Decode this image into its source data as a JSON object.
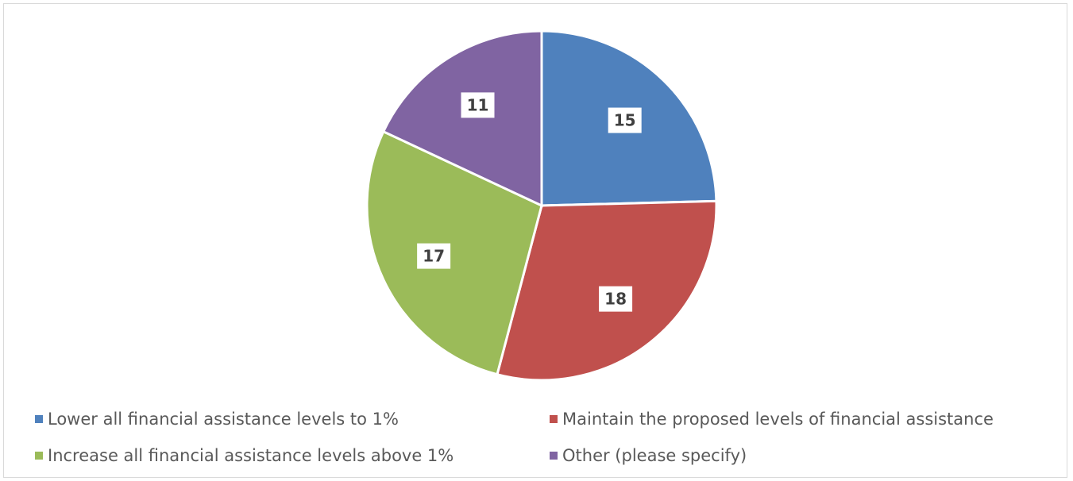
{
  "chart_data": {
    "type": "pie",
    "categories": [
      "Lower all financial assistance levels to 1%",
      "Maintain the proposed levels of financial assistance",
      "Increase all financial assistance levels above 1%",
      "Other (please specify)"
    ],
    "values": [
      15,
      18,
      17,
      11
    ],
    "colors": [
      "#4f81bd",
      "#c0504d",
      "#9bbb59",
      "#8064a2"
    ],
    "data_labels": [
      "15",
      "18",
      "17",
      "11"
    ],
    "legend_position": "bottom",
    "start_angle_deg": 0,
    "direction": "clockwise"
  }
}
